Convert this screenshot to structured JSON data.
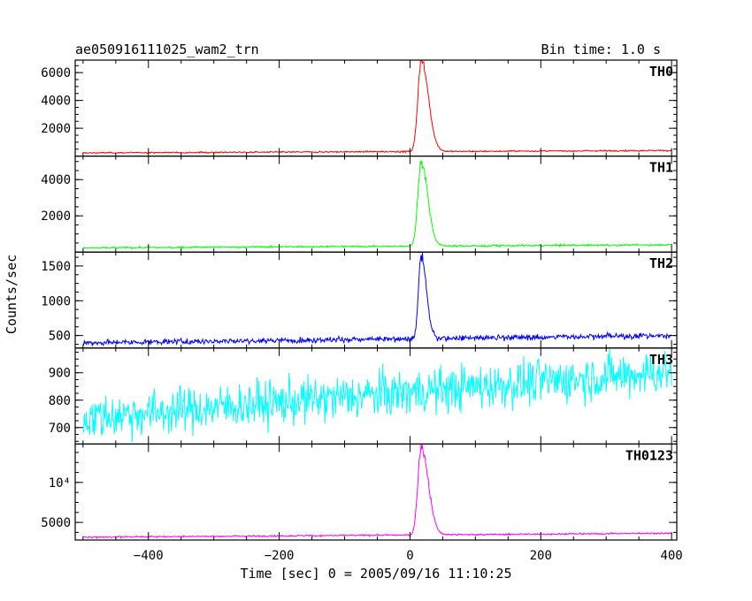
{
  "chart_data": {
    "type": "line",
    "title": "ae050916111025_wam2_trn",
    "subtitle": "Bin time: 1.0 s",
    "xlabel": "Time [sec] 0 = 2005/09/16 11:10:25",
    "ylabel": "Counts/sec",
    "xlim": [
      -512,
      408
    ],
    "xticks": [
      -400,
      -200,
      0,
      200,
      400
    ],
    "xtick_labels": [
      "−400",
      "−200",
      "0",
      "200",
      "400"
    ],
    "grid": false,
    "panels": [
      {
        "name": "TH0",
        "color": "#ff0000",
        "ylim": [
          0,
          6900
        ],
        "yticks": [
          2000,
          4000,
          6000
        ],
        "ytick_labels": [
          "2000",
          "4000",
          "6000"
        ],
        "baseline_start": 230,
        "baseline_end": 400,
        "noise": 25,
        "peak": {
          "time": 17,
          "value": 6900,
          "rise": 5,
          "decay": 11
        }
      },
      {
        "name": "TH1",
        "color": "#00ff00",
        "ylim": [
          0,
          5300
        ],
        "yticks": [
          2000,
          4000
        ],
        "ytick_labels": [
          "2000",
          "4000"
        ],
        "baseline_start": 230,
        "baseline_end": 400,
        "noise": 25,
        "peak": {
          "time": 17,
          "value": 5000,
          "rise": 5,
          "decay": 10
        }
      },
      {
        "name": "TH2",
        "color": "#0000ff",
        "ylim": [
          320,
          1700
        ],
        "yticks": [
          500,
          1000,
          1500
        ],
        "ytick_labels": [
          "500",
          "1000",
          "1500"
        ],
        "baseline_start": 395,
        "baseline_end": 500,
        "noise": 20,
        "peak": {
          "time": 17,
          "value": 1650,
          "rise": 4,
          "decay": 8
        }
      },
      {
        "name": "TH3",
        "color": "#00ffff",
        "ylim": [
          640,
          990
        ],
        "yticks": [
          700,
          800,
          900
        ],
        "ytick_labels": [
          "700",
          "800",
          "900"
        ],
        "baseline_start": 735,
        "baseline_end": 905,
        "noise": 42,
        "peak": null
      },
      {
        "name": "TH0123",
        "color": "#ff00ff",
        "ylim": [
          2800,
          14800
        ],
        "yticks": [
          5000,
          10000
        ],
        "ytick_labels": [
          "5000",
          "10⁴"
        ],
        "baseline_start": 3150,
        "baseline_end": 3650,
        "noise": 50,
        "peak": {
          "time": 17,
          "value": 14500,
          "rise": 5,
          "decay": 11
        }
      }
    ]
  }
}
